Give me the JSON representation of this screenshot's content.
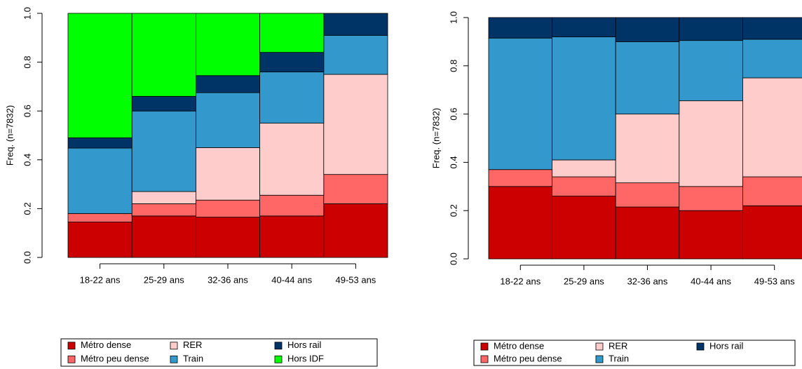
{
  "chart_data": [
    {
      "type": "stacked_bar",
      "y_label": "Freq. (n=7832)",
      "categories": [
        "18-22 ans",
        "25-29 ans",
        "32-36 ans",
        "40-44 ans",
        "49-53 ans"
      ],
      "series": [
        {
          "name": "Métro dense",
          "color": "#cc0000",
          "values": [
            0.145,
            0.17,
            0.165,
            0.17,
            0.22
          ]
        },
        {
          "name": "Métro peu dense",
          "color": "#ff6666",
          "values": [
            0.035,
            0.05,
            0.07,
            0.085,
            0.12
          ]
        },
        {
          "name": "RER",
          "color": "#ffcccc",
          "values": [
            0,
            0.05,
            0.215,
            0.295,
            0.41
          ]
        },
        {
          "name": "Train",
          "color": "#3399cc",
          "values": [
            0.268,
            0.33,
            0.225,
            0.21,
            0.16
          ]
        },
        {
          "name": "Hors rail",
          "color": "#003366",
          "values": [
            0.042,
            0.06,
            0.07,
            0.08,
            0.09
          ]
        },
        {
          "name": "Hors IDF",
          "color": "#00ff00",
          "values": [
            0.51,
            0.34,
            0.255,
            0.16,
            0
          ]
        }
      ],
      "ylim": [
        0,
        1
      ],
      "yticks": [
        {
          "value": 0,
          "label": "0.0"
        },
        0.2,
        0.4,
        0.6,
        0.8,
        {
          "value": 1,
          "label": "1.0"
        }
      ]
    },
    {
      "type": "stacked_bar",
      "y_label": "Freq. (n=7832)",
      "categories": [
        "18-22 ans",
        "25-29 ans",
        "32-36 ans",
        "40-44 ans",
        "49-53 ans"
      ],
      "series": [
        {
          "name": "Métro dense",
          "color": "#cc0000",
          "values": [
            0.3,
            0.26,
            0.215,
            0.2,
            0.22
          ]
        },
        {
          "name": "Métro peu dense",
          "color": "#ff6666",
          "values": [
            0.07,
            0.08,
            0.1,
            0.1,
            0.12
          ]
        },
        {
          "name": "RER",
          "color": "#ffcccc",
          "values": [
            0,
            0.07,
            0.285,
            0.355,
            0.41
          ]
        },
        {
          "name": "Train",
          "color": "#3399cc",
          "values": [
            0.545,
            0.51,
            0.3,
            0.25,
            0.16
          ]
        },
        {
          "name": "Hors rail",
          "color": "#003366",
          "values": [
            0.085,
            0.08,
            0.1,
            0.095,
            0.09
          ]
        }
      ],
      "ylim": [
        0,
        1
      ],
      "yticks": [
        {
          "value": 0,
          "label": "0.0"
        },
        0.2,
        0.4,
        0.6,
        0.8,
        {
          "value": 1,
          "label": "1.0"
        }
      ]
    }
  ]
}
